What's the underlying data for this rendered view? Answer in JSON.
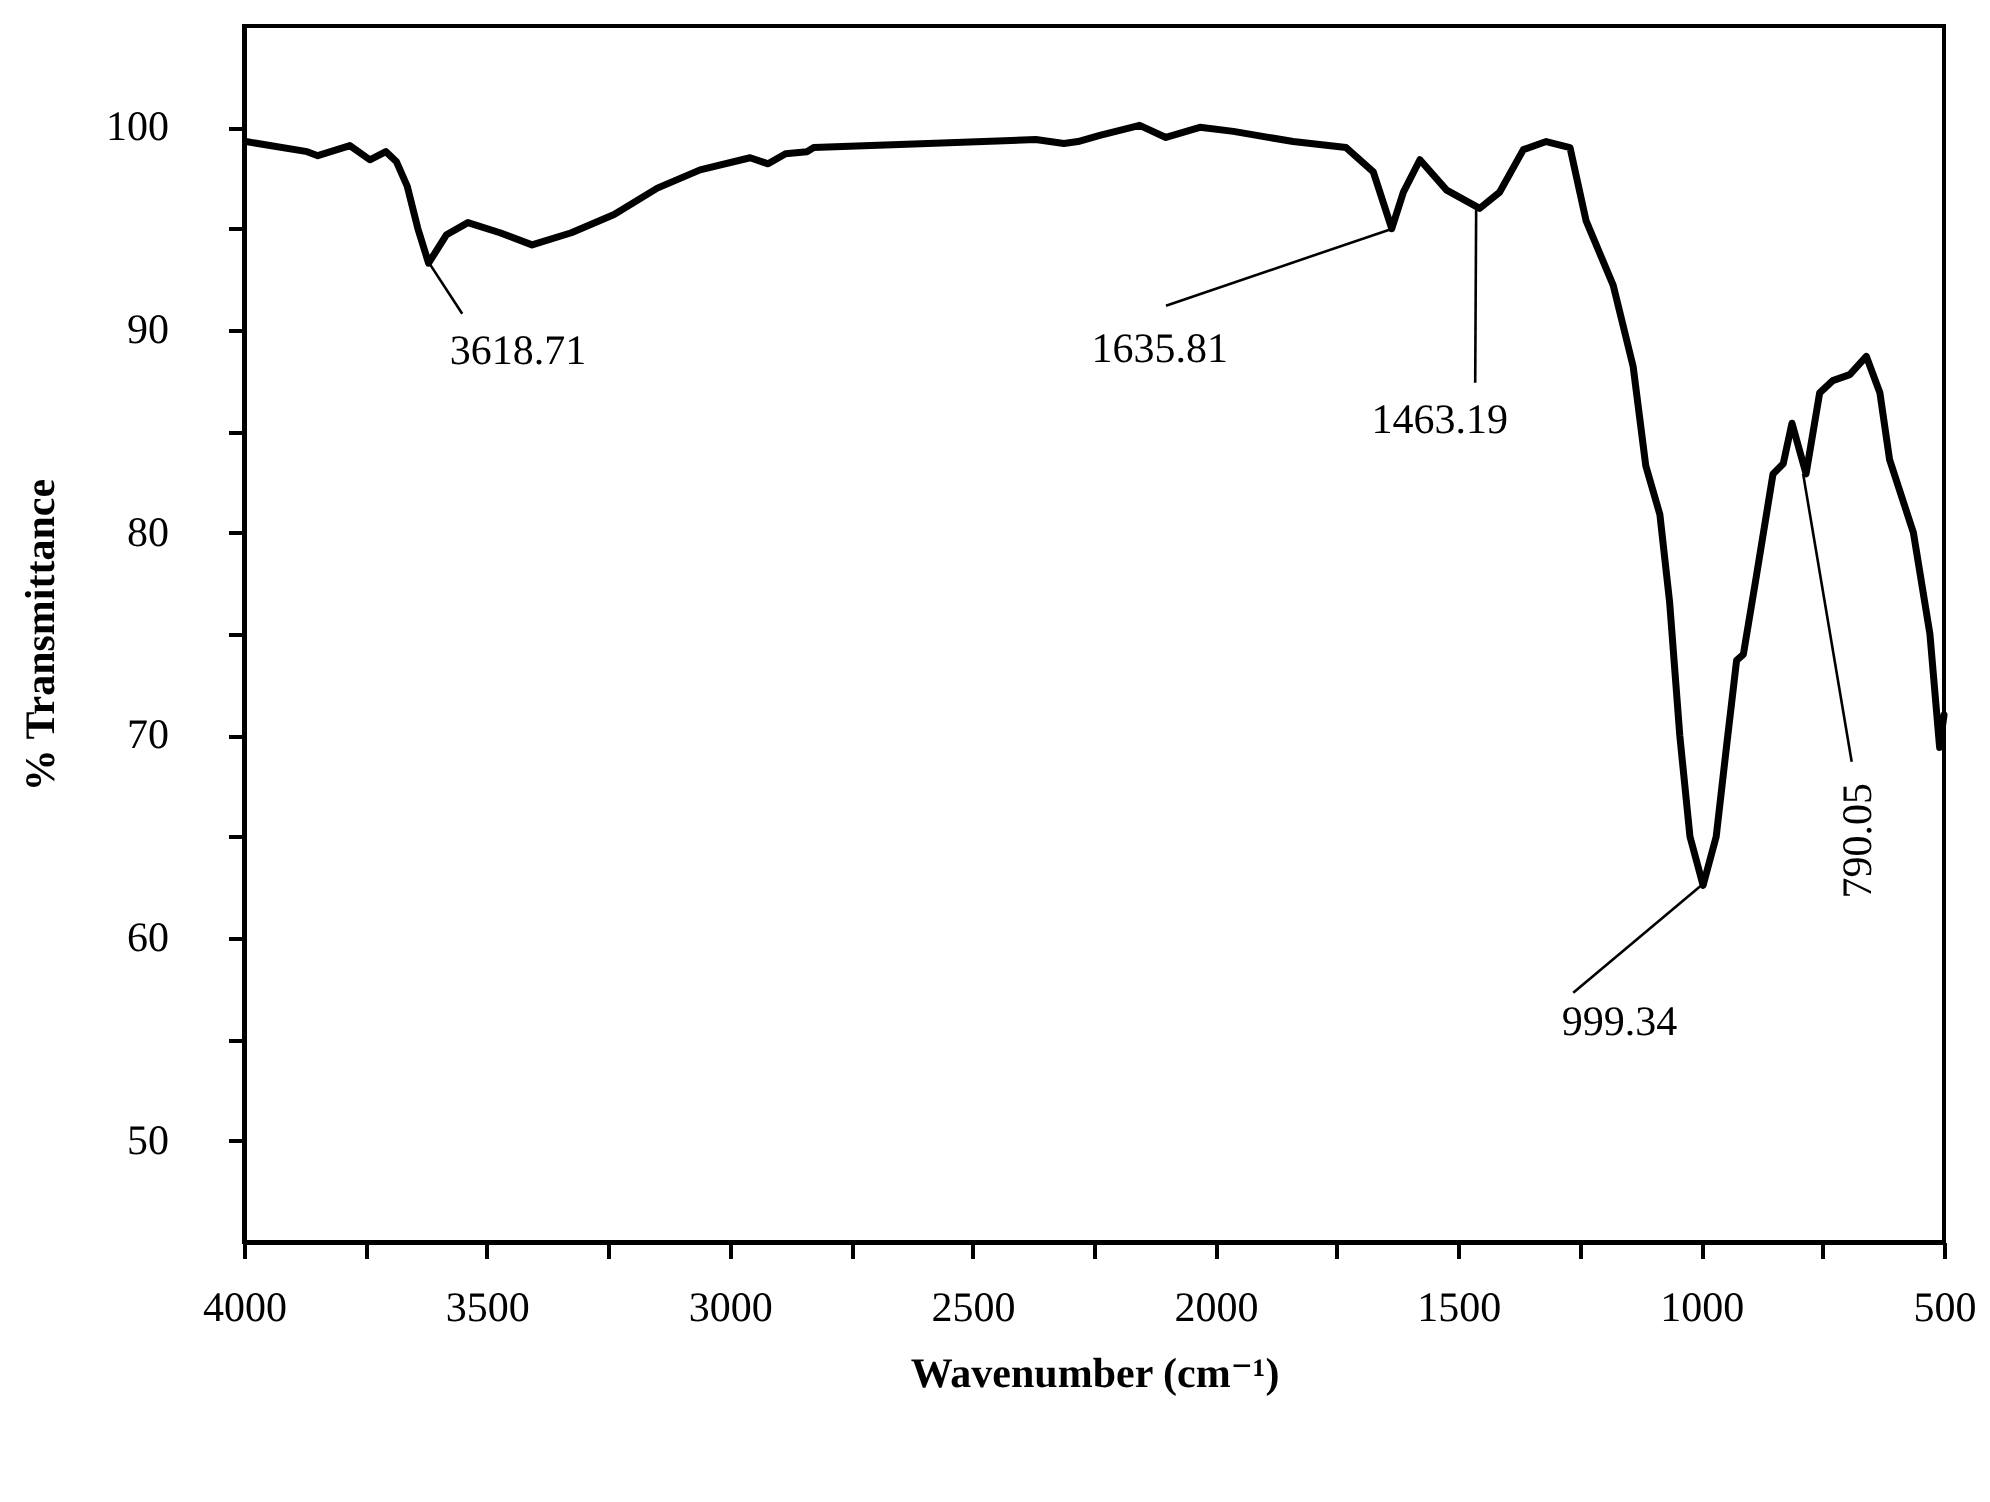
{
  "chart_data": {
    "type": "line",
    "xlabel": "Wavenumber (cm⁻¹)",
    "ylabel": "% Transmittance",
    "xlim": [
      4000,
      500
    ],
    "ylim": [
      45,
      105
    ],
    "xticks": [
      4000,
      {
        "value": 3750,
        "label": null
      },
      3500,
      {
        "value": 3250,
        "label": null
      },
      3000,
      {
        "value": 2750,
        "label": null
      },
      2500,
      {
        "value": 2250,
        "label": null
      },
      2000,
      {
        "value": 1750,
        "label": null
      },
      1500,
      {
        "value": 1250,
        "label": null
      },
      1000,
      {
        "value": 750,
        "label": null
      },
      500
    ],
    "yticks": [
      50,
      {
        "value": 55,
        "label": null
      },
      60,
      {
        "value": 65,
        "label": null
      },
      70,
      {
        "value": 75,
        "label": null
      },
      80,
      {
        "value": 85,
        "label": null
      },
      90,
      {
        "value": 95,
        "label": null
      },
      100
    ],
    "grid": false,
    "series": [
      {
        "color": "#000000",
        "x": [
          3996,
          3870,
          3848,
          3782,
          3741,
          3708,
          3686,
          3664,
          3642,
          3620,
          3583,
          3539,
          3473,
          3407,
          3326,
          3238,
          3149,
          3061,
          2958,
          2921,
          2885,
          2841,
          2827,
          2592,
          2370,
          2312,
          2283,
          2238,
          2156,
          2102,
          2032,
          1963,
          1840,
          1731,
          1675,
          1637,
          1613,
          1579,
          1524,
          1456,
          1415,
          1366,
          1319,
          1270,
          1237,
          1181,
          1140,
          1114,
          1085,
          1065,
          1044,
          1023,
          996,
          969,
          948,
          927,
          913,
          886,
          852,
          831,
          813,
          784,
          756,
          729,
          694,
          660,
          632,
          612,
          563,
          529,
          509,
          500
        ],
        "values": [
          99.3,
          98.8,
          98.6,
          99.1,
          98.4,
          98.8,
          98.3,
          97.1,
          95.0,
          93.3,
          94.7,
          95.3,
          94.8,
          94.2,
          94.8,
          95.7,
          97.0,
          97.9,
          98.5,
          98.2,
          98.7,
          98.8,
          99.0,
          99.2,
          99.4,
          99.2,
          99.3,
          99.6,
          100.1,
          99.5,
          100.0,
          99.8,
          99.3,
          99.0,
          97.8,
          95.0,
          96.8,
          98.4,
          96.9,
          96.0,
          96.8,
          98.9,
          99.3,
          99.0,
          95.4,
          92.2,
          88.2,
          83.3,
          80.9,
          76.6,
          70.0,
          65.0,
          62.6,
          65.0,
          69.4,
          73.7,
          74.0,
          77.9,
          82.9,
          83.4,
          85.4,
          82.9,
          86.9,
          87.5,
          87.8,
          88.7,
          86.9,
          83.6,
          80.0,
          75.0,
          69.4,
          71.0
        ]
      }
    ],
    "annotations": [
      {
        "text": "3618.71",
        "x": 3618.71,
        "y": 93.3
      },
      {
        "text": "1635.81",
        "x": 1635.81,
        "y": 95.0
      },
      {
        "text": "1463.19",
        "x": 1463.19,
        "y": 96.0
      },
      {
        "text": "999.34",
        "x": 999.34,
        "y": 62.6
      },
      {
        "text": "790.05",
        "x": 790.05,
        "y": 82.9
      }
    ]
  }
}
